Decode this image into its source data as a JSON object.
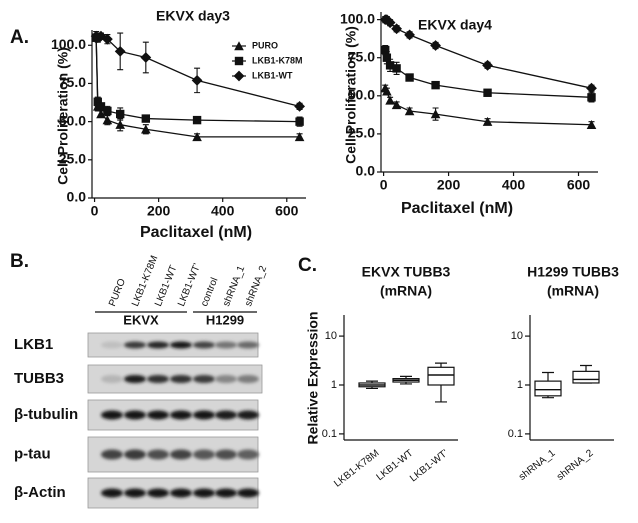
{
  "panels": [
    "A.",
    "B.",
    "C."
  ],
  "chart_data": [
    {
      "type": "line",
      "title": "EKVX day3",
      "xlabel": "Paclitaxel (nM)",
      "ylabel": "Cell Proliferation (%)",
      "x": [
        5,
        10,
        20,
        40,
        80,
        160,
        320,
        640
      ],
      "series": [
        {
          "name": "PURO",
          "color": "#111111",
          "marker": "triangle",
          "values": [
            105,
            60,
            55,
            51,
            48,
            45,
            40,
            40
          ],
          "errors": [
            2,
            3,
            2,
            3,
            4,
            3,
            2,
            2
          ]
        },
        {
          "name": "LKB1-K78M",
          "color": "#111111",
          "marker": "square",
          "values": [
            105,
            63,
            60,
            57,
            55,
            52,
            51,
            50
          ],
          "errors": [
            2,
            3,
            2,
            3,
            4,
            2,
            2,
            3
          ]
        },
        {
          "name": "LKB1-WT",
          "color": "#111111",
          "marker": "diamond",
          "values": [
            106,
            105,
            106,
            104,
            96,
            92,
            77,
            60
          ],
          "errors": [
            3,
            3,
            2,
            3,
            12,
            10,
            8,
            2
          ]
        }
      ],
      "xlim": [
        -8,
        660
      ],
      "ylim": [
        0,
        110
      ],
      "xticks": [
        0,
        200,
        400,
        600
      ],
      "yticks": [
        {
          "value": 0,
          "label": "0.0"
        },
        {
          "value": 25,
          "label": "25.0"
        },
        {
          "value": 50,
          "label": "50.0"
        },
        {
          "value": 75,
          "label": "75.0"
        },
        {
          "value": 100,
          "label": "100.0"
        }
      ],
      "legend": "upper right"
    },
    {
      "type": "line",
      "title": "EKVX day4",
      "xlabel": "Paclitaxel (nM)",
      "ylabel": "Cell Proliferation (%)",
      "x": [
        5,
        10,
        20,
        40,
        80,
        160,
        320,
        640
      ],
      "series": [
        {
          "color": "#111111",
          "marker": "triangle",
          "values": [
            55,
            53,
            47,
            44,
            40,
            38,
            33,
            31
          ],
          "errors": [
            2,
            2,
            2,
            2,
            2,
            4,
            2,
            2
          ]
        },
        {
          "color": "#111111",
          "marker": "square",
          "values": [
            80,
            75,
            70,
            68,
            62,
            57,
            52,
            49
          ],
          "errors": [
            3,
            4,
            4,
            4,
            2,
            2,
            2,
            3
          ]
        },
        {
          "color": "#111111",
          "marker": "diamond",
          "values": [
            100,
            100,
            98,
            94,
            90,
            83,
            70,
            55
          ],
          "errors": [
            2,
            2,
            2,
            2,
            2,
            2,
            2,
            2
          ]
        }
      ],
      "xlim": [
        -8,
        660
      ],
      "ylim": [
        0,
        105
      ],
      "xticks": [
        0,
        200,
        400,
        600
      ],
      "yticks": [
        {
          "value": 0,
          "label": "0.0"
        },
        {
          "value": 25,
          "label": "25.0"
        },
        {
          "value": 50,
          "label": "50.0"
        },
        {
          "value": 75,
          "label": "75.0"
        },
        {
          "value": 100,
          "label": "100.0"
        }
      ]
    },
    {
      "type": "box",
      "title": "EKVX TUBB3",
      "subtitle": "(mRNA)",
      "ylabel": "Relative Expression",
      "categories": [
        "LKB1-K78M",
        "LKB1-WT",
        "LKB1-WT'"
      ],
      "boxes": [
        {
          "min": 0.85,
          "q1": 0.92,
          "median": 1.0,
          "q3": 1.1,
          "max": 1.2
        },
        {
          "min": 1.05,
          "q1": 1.15,
          "median": 1.25,
          "q3": 1.35,
          "max": 1.5
        },
        {
          "min": 0.45,
          "q1": 1.0,
          "median": 1.6,
          "q3": 2.3,
          "max": 2.8
        }
      ],
      "log": true,
      "ylim": [
        0.075,
        27
      ],
      "yticks": [
        0.1,
        1,
        10
      ]
    },
    {
      "type": "box",
      "title": "H1299 TUBB3",
      "subtitle": "(mRNA)",
      "categories": [
        "shRNA_1",
        "shRNA_2"
      ],
      "boxes": [
        {
          "min": 0.55,
          "q1": 0.6,
          "median": 0.8,
          "q3": 1.2,
          "max": 1.8
        },
        {
          "min": 1.1,
          "q1": 1.1,
          "median": 1.3,
          "q3": 1.9,
          "max": 2.5
        }
      ],
      "log": true,
      "ylim": [
        0.075,
        27
      ],
      "yticks": [
        0.1,
        1,
        10
      ]
    }
  ],
  "blot": {
    "columns": [
      "PURO",
      "LKB1-K78M",
      "LKB1-WT",
      "LKB1-WT'",
      "control",
      "shRNA_1",
      "shRNA_2"
    ],
    "groups": [
      "EKVX",
      "H1299"
    ],
    "rows": [
      "LKB1",
      "TUBB3",
      "β-tubulin",
      "p-tau",
      "β-Actin"
    ]
  }
}
